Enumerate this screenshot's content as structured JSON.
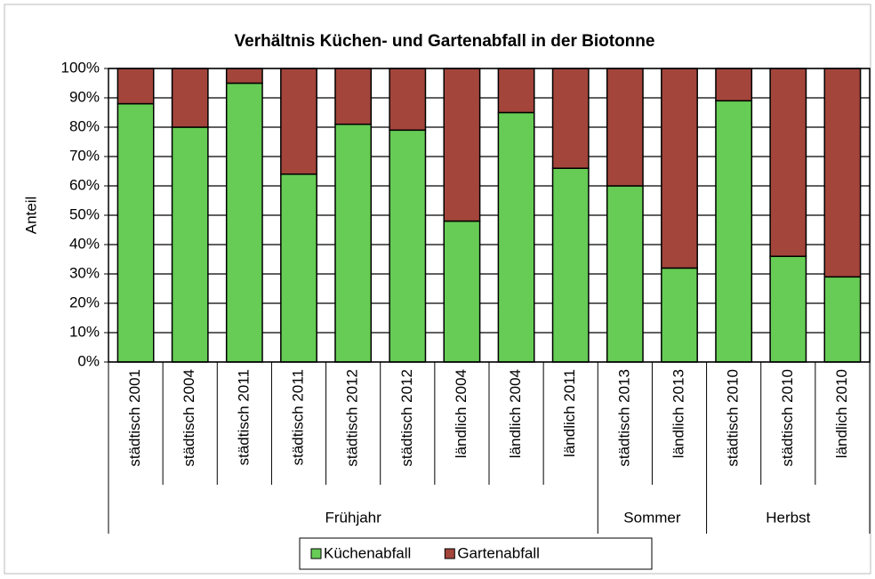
{
  "chart_data": {
    "type": "stacked_bar",
    "title": "Verhältnis Küchen- und Gartenabfall in der Biotonne",
    "y_label": "Anteil",
    "categories": [
      "städtisch 2001",
      "städtisch 2004",
      "städtisch 2011",
      "städtisch 2011",
      "städtisch 2012",
      "städtisch 2012",
      "ländlich 2004",
      "ländlich 2004",
      "ländlich 2011",
      "städtisch 2013",
      "ländlich 2013",
      "städtisch 2010",
      "städtisch 2010",
      "ländlich 2010"
    ],
    "groups": [
      {
        "label": "Frühjahr",
        "size": 9
      },
      {
        "label": "Sommer",
        "size": 2
      },
      {
        "label": "Herbst",
        "size": 3
      }
    ],
    "series": [
      {
        "name": "Küchenabfall",
        "color": "#66cc55",
        "values": [
          88,
          80,
          95,
          64,
          81,
          79,
          48,
          85,
          66,
          60,
          32,
          89,
          36,
          29
        ]
      },
      {
        "name": "Gartenabfall",
        "color": "#a3453b",
        "values": [
          12,
          20,
          5,
          36,
          19,
          21,
          52,
          15,
          34,
          40,
          68,
          11,
          64,
          71
        ]
      }
    ],
    "ylim": [
      0,
      100
    ],
    "yticks": [
      {
        "value": 0,
        "label": "0%"
      },
      {
        "value": 10,
        "label": "10%"
      },
      {
        "value": 20,
        "label": "20%"
      },
      {
        "value": 30,
        "label": "30%"
      },
      {
        "value": 40,
        "label": "40%"
      },
      {
        "value": 50,
        "label": "50%"
      },
      {
        "value": 60,
        "label": "60%"
      },
      {
        "value": 70,
        "label": "70%"
      },
      {
        "value": 80,
        "label": "80%"
      },
      {
        "value": 90,
        "label": "90%"
      },
      {
        "value": 100,
        "label": "100%"
      }
    ],
    "grid": true,
    "legend": "bottom"
  }
}
